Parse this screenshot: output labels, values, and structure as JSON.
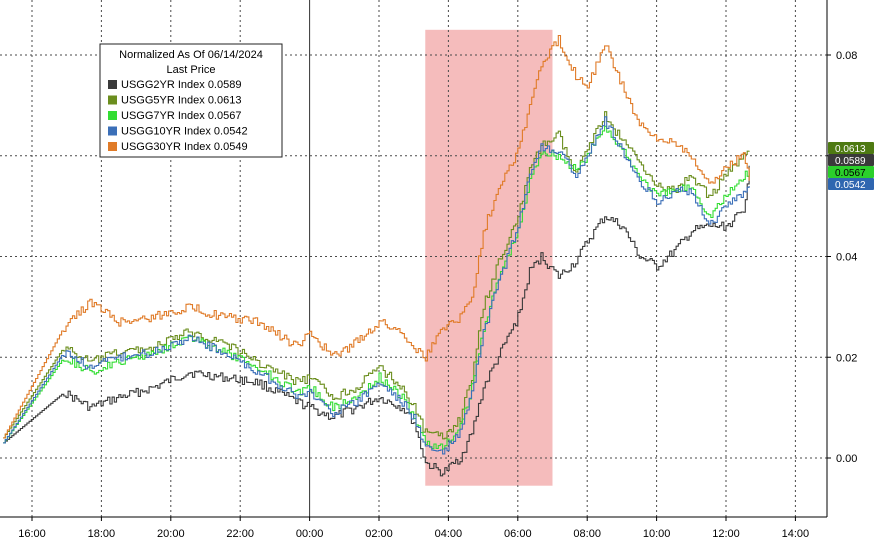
{
  "chart_data": {
    "type": "line",
    "xlabel": "",
    "ylabel": "",
    "x_ticks": [
      "16:00",
      "18:00",
      "20:00",
      "22:00",
      "00:00",
      "02:00",
      "04:00",
      "06:00",
      "08:00",
      "10:00",
      "12:00",
      "14:00"
    ],
    "y_ticks": [
      "0.00",
      "0.02",
      "0.04",
      "0.06",
      "0.08"
    ],
    "ylim": [
      -0.012,
      0.09
    ],
    "grid": true,
    "legend": {
      "title": "Normalized As Of 06/14/2024",
      "subtitle": "Last Price",
      "placement": "top-left",
      "entries": [
        {
          "name": "USGG2YR Index",
          "value": "0.0589"
        },
        {
          "name": "USGG5YR Index",
          "value": "0.0613"
        },
        {
          "name": "USGG7YR Index",
          "value": "0.0567"
        },
        {
          "name": "USGG10YR Index",
          "value": "0.0542"
        },
        {
          "name": "USGG30YR Index",
          "value": "0.0549"
        }
      ]
    },
    "highlight_window": {
      "from": "03:20",
      "to": "07:00"
    },
    "series": [
      {
        "name": "USGG2YR Index",
        "color": "#3a3a3a",
        "last": 0.0589,
        "points": [
          [
            "15:10",
            0.003
          ],
          [
            "16:55",
            0.013
          ],
          [
            "17:40",
            0.01
          ],
          [
            "18:30",
            0.012
          ],
          [
            "19:30",
            0.014
          ],
          [
            "20:30",
            0.017
          ],
          [
            "21:30",
            0.016
          ],
          [
            "22:30",
            0.015
          ],
          [
            "23:40",
            0.011
          ],
          [
            "00:00",
            0.01
          ],
          [
            "00:40",
            0.008
          ],
          [
            "01:20",
            0.01
          ],
          [
            "02:00",
            0.012
          ],
          [
            "02:40",
            0.01
          ],
          [
            "03:00",
            0.007
          ],
          [
            "03:20",
            -0.001
          ],
          [
            "03:50",
            -0.003
          ],
          [
            "04:20",
            0.0
          ],
          [
            "04:40",
            0.005
          ],
          [
            "05:00",
            0.014
          ],
          [
            "05:30",
            0.021
          ],
          [
            "06:00",
            0.028
          ],
          [
            "06:20",
            0.037
          ],
          [
            "06:40",
            0.04
          ],
          [
            "07:10",
            0.036
          ],
          [
            "07:40",
            0.039
          ],
          [
            "08:00",
            0.043
          ],
          [
            "08:30",
            0.048
          ],
          [
            "09:00",
            0.046
          ],
          [
            "09:30",
            0.04
          ],
          [
            "10:00",
            0.038
          ],
          [
            "10:30",
            0.041
          ],
          [
            "11:00",
            0.045
          ],
          [
            "11:30",
            0.046
          ],
          [
            "12:00",
            0.046
          ],
          [
            "12:30",
            0.049
          ],
          [
            "12:40",
            0.058
          ]
        ]
      },
      {
        "name": "USGG5YR Index",
        "color": "#6b8e1e",
        "last": 0.0613,
        "points": [
          [
            "15:10",
            0.004
          ],
          [
            "16:55",
            0.022
          ],
          [
            "17:40",
            0.019
          ],
          [
            "18:30",
            0.021
          ],
          [
            "19:30",
            0.022
          ],
          [
            "20:30",
            0.025
          ],
          [
            "21:30",
            0.023
          ],
          [
            "22:30",
            0.019
          ],
          [
            "23:40",
            0.015
          ],
          [
            "00:00",
            0.016
          ],
          [
            "00:40",
            0.012
          ],
          [
            "01:20",
            0.014
          ],
          [
            "02:00",
            0.018
          ],
          [
            "02:40",
            0.014
          ],
          [
            "03:00",
            0.01
          ],
          [
            "03:20",
            0.005
          ],
          [
            "03:50",
            0.004
          ],
          [
            "04:20",
            0.008
          ],
          [
            "04:40",
            0.016
          ],
          [
            "05:00",
            0.03
          ],
          [
            "05:30",
            0.04
          ],
          [
            "06:00",
            0.048
          ],
          [
            "06:20",
            0.057
          ],
          [
            "06:40",
            0.062
          ],
          [
            "07:10",
            0.064
          ],
          [
            "07:40",
            0.056
          ],
          [
            "08:00",
            0.062
          ],
          [
            "08:30",
            0.068
          ],
          [
            "09:00",
            0.063
          ],
          [
            "09:30",
            0.059
          ],
          [
            "10:00",
            0.054
          ],
          [
            "10:30",
            0.053
          ],
          [
            "11:00",
            0.056
          ],
          [
            "11:30",
            0.052
          ],
          [
            "12:00",
            0.056
          ],
          [
            "12:30",
            0.06
          ],
          [
            "12:40",
            0.061
          ]
        ]
      },
      {
        "name": "USGG7YR Index",
        "color": "#33dd33",
        "last": 0.0567,
        "points": [
          [
            "15:10",
            0.003
          ],
          [
            "16:55",
            0.02
          ],
          [
            "17:40",
            0.017
          ],
          [
            "18:30",
            0.019
          ],
          [
            "19:30",
            0.021
          ],
          [
            "20:30",
            0.024
          ],
          [
            "21:30",
            0.021
          ],
          [
            "22:30",
            0.018
          ],
          [
            "23:40",
            0.013
          ],
          [
            "00:00",
            0.014
          ],
          [
            "00:40",
            0.01
          ],
          [
            "01:20",
            0.012
          ],
          [
            "02:00",
            0.016
          ],
          [
            "02:40",
            0.012
          ],
          [
            "03:00",
            0.008
          ],
          [
            "03:20",
            0.003
          ],
          [
            "03:50",
            0.002
          ],
          [
            "04:20",
            0.006
          ],
          [
            "04:40",
            0.014
          ],
          [
            "05:00",
            0.026
          ],
          [
            "05:30",
            0.037
          ],
          [
            "06:00",
            0.045
          ],
          [
            "06:20",
            0.055
          ],
          [
            "06:40",
            0.061
          ],
          [
            "07:10",
            0.06
          ],
          [
            "07:40",
            0.057
          ],
          [
            "08:00",
            0.06
          ],
          [
            "08:30",
            0.066
          ],
          [
            "09:00",
            0.061
          ],
          [
            "09:30",
            0.056
          ],
          [
            "10:00",
            0.052
          ],
          [
            "10:30",
            0.053
          ],
          [
            "11:00",
            0.054
          ],
          [
            "11:30",
            0.048
          ],
          [
            "12:00",
            0.052
          ],
          [
            "12:30",
            0.056
          ],
          [
            "12:40",
            0.057
          ]
        ]
      },
      {
        "name": "USGG10YR Index",
        "color": "#3b6fb8",
        "last": 0.0542,
        "points": [
          [
            "15:10",
            0.003
          ],
          [
            "16:55",
            0.021
          ],
          [
            "17:40",
            0.018
          ],
          [
            "18:30",
            0.02
          ],
          [
            "19:30",
            0.021
          ],
          [
            "20:30",
            0.024
          ],
          [
            "21:30",
            0.021
          ],
          [
            "22:30",
            0.017
          ],
          [
            "23:40",
            0.012
          ],
          [
            "00:00",
            0.013
          ],
          [
            "00:40",
            0.009
          ],
          [
            "01:20",
            0.011
          ],
          [
            "02:00",
            0.015
          ],
          [
            "02:40",
            0.011
          ],
          [
            "03:00",
            0.008
          ],
          [
            "03:20",
            0.002
          ],
          [
            "03:50",
            0.001
          ],
          [
            "04:20",
            0.005
          ],
          [
            "04:40",
            0.013
          ],
          [
            "05:00",
            0.025
          ],
          [
            "05:30",
            0.036
          ],
          [
            "06:00",
            0.046
          ],
          [
            "06:20",
            0.056
          ],
          [
            "06:40",
            0.062
          ],
          [
            "07:10",
            0.061
          ],
          [
            "07:40",
            0.056
          ],
          [
            "08:00",
            0.06
          ],
          [
            "08:30",
            0.067
          ],
          [
            "09:00",
            0.061
          ],
          [
            "09:30",
            0.055
          ],
          [
            "10:00",
            0.051
          ],
          [
            "10:30",
            0.053
          ],
          [
            "11:00",
            0.053
          ],
          [
            "11:30",
            0.046
          ],
          [
            "12:00",
            0.05
          ],
          [
            "12:30",
            0.053
          ],
          [
            "12:40",
            0.054
          ]
        ]
      },
      {
        "name": "USGG30YR Index",
        "color": "#e07b28",
        "last": 0.0549,
        "points": [
          [
            "15:10",
            0.004
          ],
          [
            "16:55",
            0.026
          ],
          [
            "17:40",
            0.031
          ],
          [
            "18:30",
            0.027
          ],
          [
            "19:30",
            0.028
          ],
          [
            "20:30",
            0.03
          ],
          [
            "21:30",
            0.028
          ],
          [
            "22:30",
            0.027
          ],
          [
            "23:40",
            0.022
          ],
          [
            "00:00",
            0.025
          ],
          [
            "00:40",
            0.02
          ],
          [
            "01:20",
            0.023
          ],
          [
            "02:00",
            0.027
          ],
          [
            "02:40",
            0.025
          ],
          [
            "03:00",
            0.022
          ],
          [
            "03:20",
            0.02
          ],
          [
            "03:50",
            0.026
          ],
          [
            "04:20",
            0.028
          ],
          [
            "04:40",
            0.032
          ],
          [
            "05:00",
            0.045
          ],
          [
            "05:30",
            0.055
          ],
          [
            "06:00",
            0.061
          ],
          [
            "06:20",
            0.07
          ],
          [
            "06:40",
            0.078
          ],
          [
            "07:10",
            0.083
          ],
          [
            "07:40",
            0.076
          ],
          [
            "08:00",
            0.074
          ],
          [
            "08:30",
            0.082
          ],
          [
            "09:00",
            0.074
          ],
          [
            "09:30",
            0.066
          ],
          [
            "10:00",
            0.063
          ],
          [
            "10:30",
            0.063
          ],
          [
            "11:00",
            0.06
          ],
          [
            "11:30",
            0.054
          ],
          [
            "12:00",
            0.058
          ],
          [
            "12:30",
            0.06
          ],
          [
            "12:40",
            0.055
          ]
        ]
      }
    ]
  },
  "colors": {
    "plot_bg": "#ffffff",
    "grid": "#4a4a4a",
    "highlight": "#f4b8b8"
  }
}
